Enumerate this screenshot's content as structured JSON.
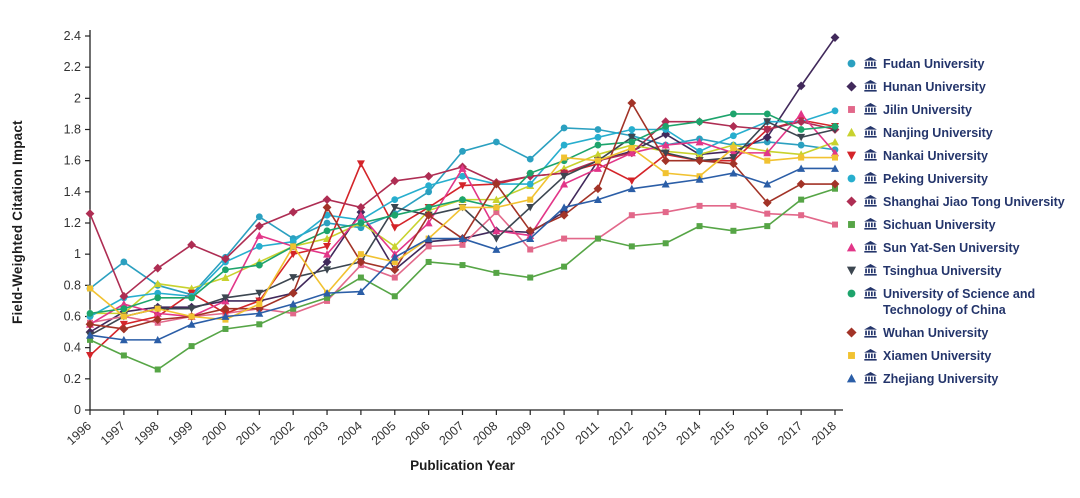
{
  "colors": {
    "legend_text": "#24356B",
    "axis_text": "#333333",
    "axis_line": "#222222",
    "background": "#FFFFFF"
  },
  "chart_data": {
    "type": "line",
    "title": "",
    "xlabel": "Publication Year",
    "ylabel": "Field-Weighted Citation Impact",
    "x": [
      1996,
      1997,
      1998,
      1999,
      2000,
      2001,
      2002,
      2003,
      2004,
      2005,
      2006,
      2007,
      2008,
      2009,
      2010,
      2011,
      2012,
      2013,
      2014,
      2015,
      2016,
      2017,
      2018
    ],
    "ylim": [
      0,
      2.4
    ],
    "ytick_step": 0.2,
    "grid": false,
    "legend_position": "right",
    "series": [
      {
        "name": "Fudan University",
        "color": "#2BA0C0",
        "marker": "circle",
        "values": [
          0.78,
          0.95,
          0.8,
          0.74,
          0.98,
          1.24,
          1.1,
          1.2,
          1.17,
          1.26,
          1.4,
          1.66,
          1.72,
          1.61,
          1.81,
          1.8,
          1.76,
          1.7,
          1.74,
          1.7,
          1.72,
          1.7,
          1.67
        ]
      },
      {
        "name": "Hunan University",
        "color": "#41295B",
        "marker": "diamond",
        "values": [
          0.5,
          0.63,
          0.66,
          0.66,
          0.7,
          0.7,
          0.75,
          0.95,
          1.27,
          0.9,
          1.08,
          1.1,
          1.15,
          1.14,
          1.27,
          1.6,
          1.66,
          1.77,
          1.64,
          1.66,
          1.75,
          2.08,
          2.39
        ]
      },
      {
        "name": "Jilin University",
        "color": "#E2688A",
        "marker": "square",
        "values": [
          0.56,
          0.6,
          0.56,
          0.6,
          0.62,
          0.65,
          0.62,
          0.7,
          0.93,
          0.85,
          1.05,
          1.06,
          1.27,
          1.03,
          1.1,
          1.1,
          1.25,
          1.27,
          1.31,
          1.31,
          1.26,
          1.25,
          1.19
        ]
      },
      {
        "name": "Nanjing University",
        "color": "#C8D22E",
        "marker": "triangle-up",
        "values": [
          0.62,
          0.62,
          0.81,
          0.78,
          0.85,
          0.95,
          1.05,
          1.1,
          1.2,
          1.05,
          1.28,
          1.35,
          1.35,
          1.44,
          1.55,
          1.64,
          1.7,
          1.66,
          1.64,
          1.7,
          1.66,
          1.64,
          1.72
        ]
      },
      {
        "name": "Nankai University",
        "color": "#D42429",
        "marker": "triangle-down",
        "values": [
          0.35,
          0.55,
          0.6,
          0.75,
          0.62,
          0.7,
          1.0,
          1.05,
          1.58,
          1.17,
          1.3,
          1.44,
          1.45,
          1.5,
          1.52,
          1.58,
          1.47,
          1.64,
          1.6,
          1.6,
          1.8,
          1.86,
          1.82
        ]
      },
      {
        "name": "Peking University",
        "color": "#27AECE",
        "marker": "circle",
        "values": [
          0.6,
          0.72,
          0.75,
          0.73,
          0.95,
          1.05,
          1.08,
          1.25,
          1.22,
          1.35,
          1.44,
          1.5,
          1.45,
          1.45,
          1.7,
          1.75,
          1.8,
          1.8,
          1.66,
          1.76,
          1.85,
          1.85,
          1.92
        ]
      },
      {
        "name": "Shanghai Jiao Tong University",
        "color": "#AE2D53",
        "marker": "diamond",
        "values": [
          1.26,
          0.73,
          0.91,
          1.06,
          0.97,
          1.18,
          1.27,
          1.35,
          1.3,
          1.47,
          1.5,
          1.56,
          1.46,
          1.5,
          1.52,
          1.6,
          1.65,
          1.85,
          1.85,
          1.82,
          1.8,
          1.85,
          1.8
        ]
      },
      {
        "name": "Sichuan University",
        "color": "#56A546",
        "marker": "square",
        "values": [
          0.45,
          0.35,
          0.26,
          0.41,
          0.52,
          0.55,
          0.65,
          0.72,
          0.85,
          0.73,
          0.95,
          0.93,
          0.88,
          0.85,
          0.92,
          1.1,
          1.05,
          1.07,
          1.18,
          1.15,
          1.18,
          1.35,
          1.42
        ]
      },
      {
        "name": "Sun Yat-Sen University",
        "color": "#E23688",
        "marker": "triangle-up",
        "values": [
          0.55,
          0.68,
          0.62,
          0.6,
          0.7,
          1.12,
          1.05,
          1.0,
          1.25,
          1.0,
          1.2,
          1.55,
          1.15,
          1.12,
          1.45,
          1.55,
          1.65,
          1.7,
          1.72,
          1.65,
          1.65,
          1.9,
          1.65
        ]
      },
      {
        "name": "Tsinghua University",
        "color": "#3C4650",
        "marker": "triangle-down",
        "values": [
          0.48,
          0.6,
          0.65,
          0.65,
          0.72,
          0.75,
          0.85,
          0.9,
          0.95,
          1.3,
          1.25,
          1.3,
          1.1,
          1.3,
          1.5,
          1.6,
          1.75,
          1.65,
          1.6,
          1.62,
          1.85,
          1.75,
          1.8
        ]
      },
      {
        "name": "University of Science and Technology of China",
        "color": "#1DA46C",
        "marker": "circle",
        "values": [
          0.62,
          0.65,
          0.72,
          0.72,
          0.9,
          0.93,
          1.05,
          1.15,
          1.2,
          1.25,
          1.3,
          1.35,
          1.3,
          1.52,
          1.6,
          1.7,
          1.72,
          1.82,
          1.85,
          1.9,
          1.9,
          1.8,
          1.82
        ]
      },
      {
        "name": "Wuhan University",
        "color": "#A23327",
        "marker": "diamond",
        "values": [
          0.55,
          0.52,
          0.58,
          0.6,
          0.65,
          0.65,
          0.75,
          1.3,
          0.95,
          0.9,
          1.25,
          1.1,
          1.45,
          1.15,
          1.25,
          1.42,
          1.97,
          1.6,
          1.6,
          1.58,
          1.33,
          1.45,
          1.45
        ]
      },
      {
        "name": "Xiamen University",
        "color": "#F1C231",
        "marker": "square",
        "values": [
          0.78,
          0.6,
          0.65,
          0.6,
          0.58,
          0.68,
          1.05,
          0.75,
          1.0,
          0.95,
          1.1,
          1.3,
          1.3,
          1.35,
          1.62,
          1.6,
          1.68,
          1.52,
          1.5,
          1.68,
          1.6,
          1.62,
          1.62
        ]
      },
      {
        "name": "Zhejiang University",
        "color": "#2B5EA7",
        "marker": "triangle-up",
        "values": [
          0.48,
          0.45,
          0.45,
          0.55,
          0.6,
          0.62,
          0.68,
          0.75,
          0.76,
          0.98,
          1.1,
          1.1,
          1.03,
          1.1,
          1.3,
          1.35,
          1.42,
          1.45,
          1.48,
          1.52,
          1.45,
          1.55,
          1.55
        ]
      }
    ]
  }
}
